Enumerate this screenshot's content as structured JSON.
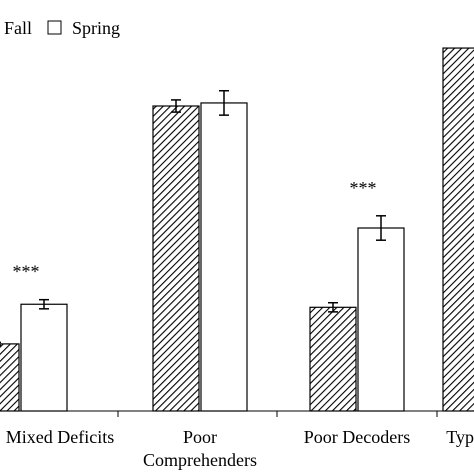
{
  "chart_data": {
    "type": "bar",
    "categories": [
      "Mixed Deficits",
      "Poor Comprehenders",
      "Poor Decoders",
      "Typical"
    ],
    "category_label_lines": [
      [
        "Mixed Deficits"
      ],
      [
        "Poor",
        "Comprehenders"
      ],
      [
        "Poor Decoders"
      ],
      [
        "Typ"
      ]
    ],
    "series": [
      {
        "name": "Fall",
        "pattern": "diagonal-hatch",
        "values": [
          22,
          100,
          34,
          119
        ],
        "errors": [
          0.5,
          2,
          1.5,
          0
        ]
      },
      {
        "name": "Spring",
        "pattern": "white",
        "values": [
          35,
          101,
          60,
          null
        ],
        "errors": [
          1.5,
          4,
          4,
          null
        ]
      }
    ],
    "annotations": [
      {
        "category": "Mixed Deficits",
        "text": "***"
      },
      {
        "category": "Poor Decoders",
        "text": "***"
      }
    ],
    "ylim": [
      0,
      120
    ],
    "grid": false,
    "legend_position": "top-left"
  },
  "colors": {
    "bar_stroke": "#000000",
    "hatch": "#000000",
    "spring_fill": "#ffffff",
    "axis": "#000000"
  }
}
